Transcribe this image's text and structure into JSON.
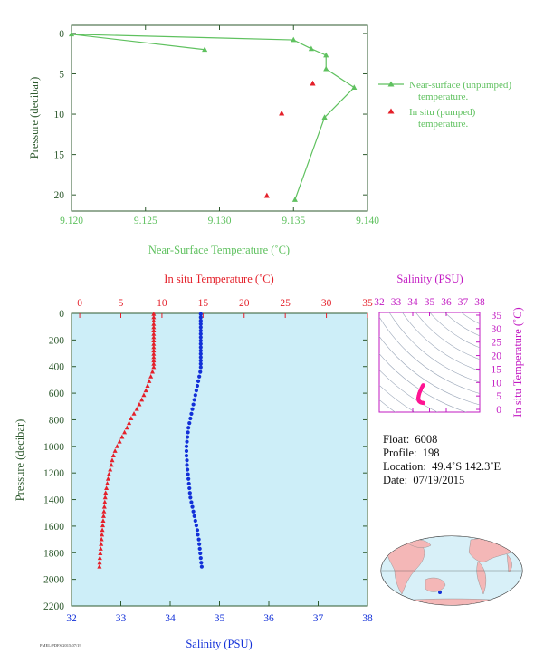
{
  "colors": {
    "green": "#5fc15f",
    "axis_dark": "#2e5a2e",
    "temp_red": "#e4202a",
    "sal_blue": "#1230d8",
    "magenta": "#c21ac2",
    "pink": "#ff1493",
    "panel_bg": "#cdeef8",
    "land": "#f4b7b7"
  },
  "chart_data": [
    {
      "type": "scatter",
      "xlabel": "Near-Surface Temperature (˚C)",
      "ylabel": "Pressure (decibar)",
      "xlim": [
        9.12,
        9.14
      ],
      "ylim": [
        22,
        -1
      ],
      "x_ticks": [
        "9.120",
        "9.125",
        "9.130",
        "9.135",
        "9.140"
      ],
      "y_ticks": [
        "0",
        "5",
        "10",
        "15",
        "20"
      ],
      "series": [
        {
          "name": "Near-surface (unpumped) temperature.",
          "marker": "triangle",
          "line": true,
          "color": "#5fc15f",
          "points": [
            [
              9.129,
              2.0
            ],
            [
              9.12,
              0.1
            ],
            [
              9.135,
              0.8
            ],
            [
              9.1362,
              1.9
            ],
            [
              9.1372,
              2.7
            ],
            [
              9.1372,
              4.4
            ],
            [
              9.1391,
              6.7
            ],
            [
              9.1371,
              10.4
            ],
            [
              9.1351,
              20.6
            ]
          ]
        },
        {
          "name": "In situ (pumped) temperature.",
          "marker": "triangle",
          "line": false,
          "color": "#e4202a",
          "points": [
            [
              9.1363,
              6.2
            ],
            [
              9.1342,
              9.9
            ],
            [
              9.1332,
              20.1
            ]
          ]
        }
      ],
      "legend": [
        {
          "line1": "Near-surface (unpumped)",
          "line2": "temperature."
        },
        {
          "line1": "In situ (pumped)",
          "line2": "temperature."
        }
      ]
    },
    {
      "type": "scatter",
      "ylabel": "Pressure (decibar)",
      "top_xlabel": "In situ Temperature (˚C)",
      "bottom_xlabel": "Salinity (PSU)",
      "temp_lim": [
        -1,
        35
      ],
      "sal_lim": [
        32,
        38
      ],
      "ylim": [
        2200,
        0
      ],
      "temp_ticks": [
        "0",
        "5",
        "10",
        "15",
        "20",
        "25",
        "30",
        "35"
      ],
      "sal_ticks": [
        "32",
        "33",
        "34",
        "35",
        "36",
        "37",
        "38"
      ],
      "y_ticks": [
        "0",
        "200",
        "400",
        "600",
        "800",
        "1000",
        "1200",
        "1400",
        "1600",
        "1800",
        "2000",
        "2200"
      ],
      "temperature_profile": [
        [
          9.0,
          5
        ],
        [
          9.0,
          30
        ],
        [
          9.0,
          55
        ],
        [
          9.0,
          80
        ],
        [
          9.0,
          105
        ],
        [
          9.0,
          130
        ],
        [
          9.0,
          155
        ],
        [
          9.0,
          180
        ],
        [
          9.0,
          205
        ],
        [
          9.0,
          230
        ],
        [
          9.0,
          255
        ],
        [
          9.0,
          280
        ],
        [
          9.0,
          305
        ],
        [
          9.0,
          330
        ],
        [
          9.0,
          355
        ],
        [
          9.0,
          380
        ],
        [
          9.0,
          405
        ],
        [
          8.85,
          440
        ],
        [
          8.65,
          475
        ],
        [
          8.45,
          510
        ],
        [
          8.25,
          545
        ],
        [
          8.05,
          580
        ],
        [
          7.8,
          615
        ],
        [
          7.55,
          650
        ],
        [
          7.25,
          685
        ],
        [
          6.95,
          720
        ],
        [
          6.6,
          755
        ],
        [
          6.25,
          790
        ],
        [
          6.0,
          825
        ],
        [
          5.75,
          860
        ],
        [
          5.45,
          895
        ],
        [
          5.15,
          930
        ],
        [
          4.85,
          965
        ],
        [
          4.55,
          1000
        ],
        [
          4.3,
          1035
        ],
        [
          4.1,
          1070
        ],
        [
          3.95,
          1105
        ],
        [
          3.85,
          1140
        ],
        [
          3.7,
          1175
        ],
        [
          3.55,
          1210
        ],
        [
          3.45,
          1245
        ],
        [
          3.35,
          1280
        ],
        [
          3.25,
          1315
        ],
        [
          3.15,
          1350
        ],
        [
          3.1,
          1385
        ],
        [
          3.05,
          1420
        ],
        [
          3.0,
          1455
        ],
        [
          2.95,
          1490
        ],
        [
          2.9,
          1525
        ],
        [
          2.85,
          1560
        ],
        [
          2.8,
          1595
        ],
        [
          2.75,
          1630
        ],
        [
          2.7,
          1665
        ],
        [
          2.65,
          1700
        ],
        [
          2.6,
          1735
        ],
        [
          2.55,
          1770
        ],
        [
          2.5,
          1805
        ],
        [
          2.45,
          1840
        ],
        [
          2.42,
          1875
        ],
        [
          2.4,
          1905
        ]
      ],
      "salinity_profile": [
        [
          34.62,
          5
        ],
        [
          34.62,
          30
        ],
        [
          34.62,
          55
        ],
        [
          34.62,
          80
        ],
        [
          34.62,
          105
        ],
        [
          34.62,
          130
        ],
        [
          34.62,
          155
        ],
        [
          34.62,
          180
        ],
        [
          34.62,
          205
        ],
        [
          34.62,
          230
        ],
        [
          34.62,
          255
        ],
        [
          34.62,
          280
        ],
        [
          34.62,
          305
        ],
        [
          34.62,
          330
        ],
        [
          34.62,
          355
        ],
        [
          34.62,
          380
        ],
        [
          34.62,
          405
        ],
        [
          34.61,
          440
        ],
        [
          34.59,
          475
        ],
        [
          34.57,
          510
        ],
        [
          34.55,
          545
        ],
        [
          34.53,
          580
        ],
        [
          34.51,
          615
        ],
        [
          34.49,
          650
        ],
        [
          34.47,
          685
        ],
        [
          34.45,
          720
        ],
        [
          34.43,
          755
        ],
        [
          34.41,
          790
        ],
        [
          34.39,
          825
        ],
        [
          34.37,
          860
        ],
        [
          34.36,
          895
        ],
        [
          34.35,
          930
        ],
        [
          34.34,
          965
        ],
        [
          34.33,
          1000
        ],
        [
          34.33,
          1035
        ],
        [
          34.33,
          1070
        ],
        [
          34.34,
          1105
        ],
        [
          34.34,
          1140
        ],
        [
          34.35,
          1175
        ],
        [
          34.36,
          1210
        ],
        [
          34.37,
          1245
        ],
        [
          34.38,
          1280
        ],
        [
          34.39,
          1315
        ],
        [
          34.4,
          1350
        ],
        [
          34.41,
          1385
        ],
        [
          34.43,
          1420
        ],
        [
          34.45,
          1455
        ],
        [
          34.47,
          1490
        ],
        [
          34.49,
          1525
        ],
        [
          34.51,
          1560
        ],
        [
          34.53,
          1595
        ],
        [
          34.55,
          1630
        ],
        [
          34.56,
          1665
        ],
        [
          34.58,
          1700
        ],
        [
          34.59,
          1735
        ],
        [
          34.6,
          1770
        ],
        [
          34.61,
          1805
        ],
        [
          34.62,
          1840
        ],
        [
          34.63,
          1875
        ],
        [
          34.64,
          1905
        ]
      ]
    },
    {
      "type": "scatter",
      "xlabel": "Salinity (PSU)",
      "ylabel": "In situ Temperature (˚C)",
      "xlim": [
        32,
        38
      ],
      "ylim": [
        -1,
        36
      ],
      "x_ticks": [
        "32",
        "33",
        "34",
        "35",
        "36",
        "37",
        "38"
      ],
      "y_ticks": [
        "0",
        "5",
        "10",
        "15",
        "20",
        "25",
        "30",
        "35"
      ],
      "ts_points": [
        [
          34.62,
          9.0
        ],
        [
          34.58,
          8.6
        ],
        [
          34.53,
          8.0
        ],
        [
          34.48,
          7.3
        ],
        [
          34.43,
          6.6
        ],
        [
          34.39,
          5.9
        ],
        [
          34.36,
          5.2
        ],
        [
          34.34,
          4.6
        ],
        [
          34.33,
          4.1
        ],
        [
          34.34,
          3.7
        ],
        [
          34.36,
          3.3
        ],
        [
          34.39,
          3.0
        ],
        [
          34.43,
          2.8
        ],
        [
          34.48,
          2.6
        ],
        [
          34.53,
          2.5
        ],
        [
          34.58,
          2.45
        ],
        [
          34.63,
          2.4
        ]
      ]
    }
  ],
  "float_info": {
    "float_label": "Float:",
    "float_value": "6008",
    "profile_label": "Profile:",
    "profile_value": "198",
    "location_label": "Location:",
    "location_value": "49.4˚S  142.3˚E",
    "date_label": "Date:",
    "date_value": "07/19/2015"
  },
  "footer_text": "PMEL/PDFS/2015/07/19"
}
